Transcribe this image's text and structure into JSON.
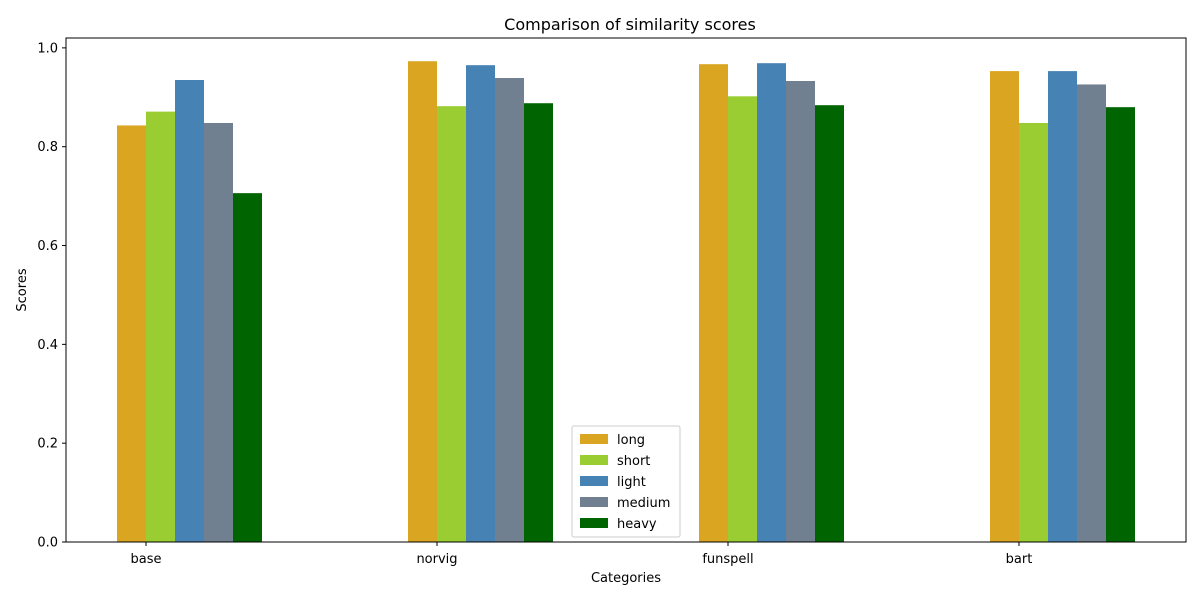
{
  "chart_data": {
    "type": "bar",
    "title": "Comparison of similarity scores",
    "xlabel": "Categories",
    "ylabel": "Scores",
    "ylim": [
      0,
      1.02
    ],
    "yticks": [
      "0.0",
      "0.2",
      "0.4",
      "0.6",
      "0.8",
      "1.0"
    ],
    "ytick_values": [
      0,
      0.2,
      0.4,
      0.6,
      0.8,
      1.0
    ],
    "categories": [
      "base",
      "norvig",
      "funspell",
      "bart"
    ],
    "series": [
      {
        "name": "long",
        "color": "#DAA520",
        "values": [
          0.843,
          0.973,
          0.967,
          0.953
        ]
      },
      {
        "name": "short",
        "color": "#9ACD32",
        "values": [
          0.871,
          0.882,
          0.902,
          0.848
        ]
      },
      {
        "name": "light",
        "color": "#4682B4",
        "values": [
          0.935,
          0.965,
          0.969,
          0.953
        ]
      },
      {
        "name": "medium",
        "color": "#708090",
        "values": [
          0.848,
          0.939,
          0.933,
          0.926
        ]
      },
      {
        "name": "heavy",
        "color": "#006400",
        "values": [
          0.706,
          0.888,
          0.884,
          0.88
        ]
      }
    ],
    "legend_position": "lower center",
    "grid": false
  }
}
